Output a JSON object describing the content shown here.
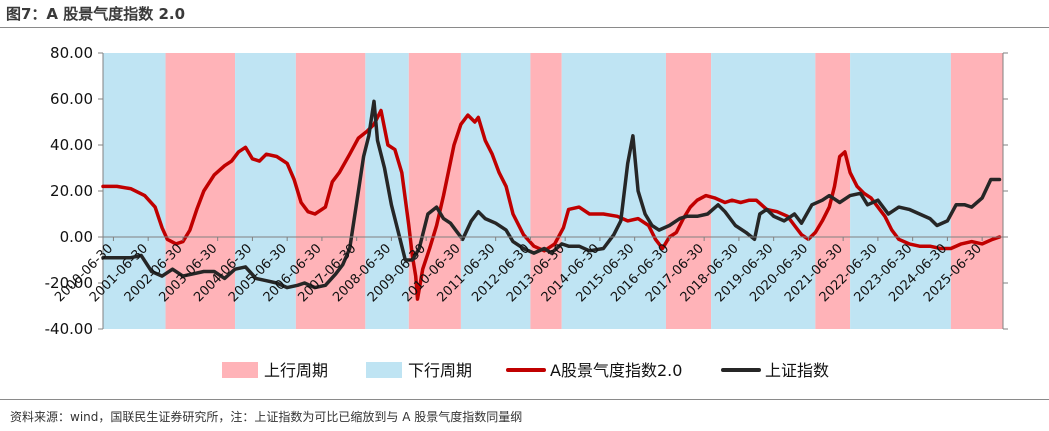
{
  "title": "图7：A 股景气度指数 2.0",
  "source": "资料来源：wind，国联民生证券研究所，注：上证指数为可比已缩放到与 A 股景气度指数同量纲",
  "colors": {
    "up_cycle": "#ffb3b8",
    "down_cycle": "#bfe4f3",
    "index_line": "#c00000",
    "sh_line": "#262626"
  },
  "chart_data": {
    "type": "line",
    "title": "",
    "xlabel": "",
    "ylabel": "",
    "ylim": [
      -40,
      80
    ],
    "yticks": [
      "80.00",
      "60.00",
      "40.00",
      "20.00",
      "0.00",
      "-20.00",
      "-40.00"
    ],
    "xlim": [
      2000.2,
      2026.1
    ],
    "xticks": [
      "2000-06-30",
      "2001-06-30",
      "2002-06-30",
      "2003-06-30",
      "2004-06-30",
      "2005-06-30",
      "2006-06-30",
      "2007-06-30",
      "2008-06-30",
      "2009-06-30",
      "2010-06-30",
      "2011-06-30",
      "2012-06-30",
      "2013-06-30",
      "2014-06-30",
      "2015-06-30",
      "2016-06-30",
      "2017-06-30",
      "2018-06-30",
      "2019-06-30",
      "2020-06-30",
      "2021-06-30",
      "2022-06-30",
      "2023-06-30",
      "2024-06-30",
      "2025-06-30"
    ],
    "grid": false,
    "legend": {
      "position": "bottom",
      "items": [
        {
          "label": "上行周期",
          "kind": "band-up"
        },
        {
          "label": "下行周期",
          "kind": "band-down"
        },
        {
          "label": "A股景气度指数2.0",
          "kind": "line-index"
        },
        {
          "label": "上证指数",
          "kind": "line-sh"
        }
      ]
    },
    "regions": [
      {
        "start": 2000.2,
        "end": 2002.0,
        "phase": "下行周期"
      },
      {
        "start": 2002.0,
        "end": 2004.0,
        "phase": "上行周期"
      },
      {
        "start": 2004.0,
        "end": 2005.75,
        "phase": "下行周期"
      },
      {
        "start": 2005.75,
        "end": 2007.75,
        "phase": "上行周期"
      },
      {
        "start": 2007.75,
        "end": 2009.0,
        "phase": "下行周期"
      },
      {
        "start": 2009.0,
        "end": 2010.5,
        "phase": "上行周期"
      },
      {
        "start": 2010.5,
        "end": 2012.5,
        "phase": "下行周期"
      },
      {
        "start": 2012.5,
        "end": 2013.4,
        "phase": "上行周期"
      },
      {
        "start": 2013.4,
        "end": 2016.4,
        "phase": "下行周期"
      },
      {
        "start": 2016.4,
        "end": 2017.7,
        "phase": "上行周期"
      },
      {
        "start": 2017.7,
        "end": 2020.7,
        "phase": "下行周期"
      },
      {
        "start": 2020.7,
        "end": 2021.7,
        "phase": "上行周期"
      },
      {
        "start": 2021.7,
        "end": 2024.6,
        "phase": "下行周期"
      },
      {
        "start": 2024.6,
        "end": 2026.1,
        "phase": "上行周期"
      }
    ],
    "series": [
      {
        "name": "A股景气度指数2.0",
        "points": [
          [
            2000.2,
            22
          ],
          [
            2000.6,
            22
          ],
          [
            2001.0,
            21
          ],
          [
            2001.4,
            18
          ],
          [
            2001.7,
            13
          ],
          [
            2001.9,
            4
          ],
          [
            2002.05,
            -1
          ],
          [
            2002.3,
            -3
          ],
          [
            2002.5,
            -2
          ],
          [
            2002.7,
            3
          ],
          [
            2002.9,
            12
          ],
          [
            2003.1,
            20
          ],
          [
            2003.4,
            27
          ],
          [
            2003.7,
            31
          ],
          [
            2003.9,
            33
          ],
          [
            2004.1,
            37
          ],
          [
            2004.3,
            39
          ],
          [
            2004.5,
            34
          ],
          [
            2004.7,
            33
          ],
          [
            2004.9,
            36
          ],
          [
            2005.2,
            35
          ],
          [
            2005.5,
            32
          ],
          [
            2005.7,
            25
          ],
          [
            2005.9,
            15
          ],
          [
            2006.1,
            11
          ],
          [
            2006.3,
            10
          ],
          [
            2006.6,
            13
          ],
          [
            2006.8,
            24
          ],
          [
            2007.0,
            28
          ],
          [
            2007.3,
            36
          ],
          [
            2007.55,
            43
          ],
          [
            2007.8,
            46
          ],
          [
            2008.0,
            49
          ],
          [
            2008.2,
            55
          ],
          [
            2008.4,
            40
          ],
          [
            2008.6,
            38
          ],
          [
            2008.8,
            28
          ],
          [
            2009.0,
            5
          ],
          [
            2009.1,
            -8
          ],
          [
            2009.2,
            -17
          ],
          [
            2009.25,
            -27
          ],
          [
            2009.4,
            -14
          ],
          [
            2009.6,
            -5
          ],
          [
            2009.8,
            5
          ],
          [
            2010.0,
            18
          ],
          [
            2010.3,
            40
          ],
          [
            2010.5,
            49
          ],
          [
            2010.7,
            53
          ],
          [
            2010.9,
            50
          ],
          [
            2011.0,
            52
          ],
          [
            2011.2,
            42
          ],
          [
            2011.4,
            36
          ],
          [
            2011.6,
            28
          ],
          [
            2011.8,
            22
          ],
          [
            2012.0,
            10
          ],
          [
            2012.3,
            1
          ],
          [
            2012.6,
            -4
          ],
          [
            2012.9,
            -6
          ],
          [
            2013.2,
            -3
          ],
          [
            2013.45,
            4
          ],
          [
            2013.6,
            12
          ],
          [
            2013.9,
            13
          ],
          [
            2014.2,
            10
          ],
          [
            2014.6,
            10
          ],
          [
            2015.0,
            9
          ],
          [
            2015.3,
            7
          ],
          [
            2015.6,
            8
          ],
          [
            2015.9,
            5
          ],
          [
            2016.1,
            -1
          ],
          [
            2016.3,
            -5
          ],
          [
            2016.5,
            0
          ],
          [
            2016.7,
            2
          ],
          [
            2016.9,
            8
          ],
          [
            2017.1,
            13
          ],
          [
            2017.3,
            16
          ],
          [
            2017.55,
            18
          ],
          [
            2017.8,
            17
          ],
          [
            2018.1,
            15
          ],
          [
            2018.3,
            16
          ],
          [
            2018.55,
            15
          ],
          [
            2018.8,
            16
          ],
          [
            2019.0,
            16
          ],
          [
            2019.3,
            12
          ],
          [
            2019.6,
            11
          ],
          [
            2019.9,
            9
          ],
          [
            2020.1,
            5
          ],
          [
            2020.3,
            1
          ],
          [
            2020.5,
            -1
          ],
          [
            2020.7,
            2
          ],
          [
            2020.9,
            7
          ],
          [
            2021.1,
            13
          ],
          [
            2021.25,
            22
          ],
          [
            2021.4,
            35
          ],
          [
            2021.55,
            37
          ],
          [
            2021.7,
            28
          ],
          [
            2021.9,
            22
          ],
          [
            2022.1,
            19
          ],
          [
            2022.3,
            17
          ],
          [
            2022.5,
            13
          ],
          [
            2022.7,
            9
          ],
          [
            2022.9,
            3
          ],
          [
            2023.1,
            -1
          ],
          [
            2023.4,
            -3
          ],
          [
            2023.7,
            -4
          ],
          [
            2024.0,
            -4
          ],
          [
            2024.3,
            -5
          ],
          [
            2024.6,
            -5
          ],
          [
            2024.9,
            -3
          ],
          [
            2025.2,
            -2
          ],
          [
            2025.5,
            -3
          ],
          [
            2025.8,
            -1
          ],
          [
            2026.0,
            0
          ]
        ]
      },
      {
        "name": "上证指数",
        "points": [
          [
            2000.2,
            -9
          ],
          [
            2000.6,
            -9
          ],
          [
            2001.0,
            -9
          ],
          [
            2001.3,
            -8
          ],
          [
            2001.6,
            -15
          ],
          [
            2001.9,
            -17
          ],
          [
            2002.2,
            -14
          ],
          [
            2002.5,
            -17
          ],
          [
            2002.8,
            -16
          ],
          [
            2003.1,
            -15
          ],
          [
            2003.4,
            -15
          ],
          [
            2003.7,
            -18
          ],
          [
            2004.0,
            -14
          ],
          [
            2004.3,
            -13
          ],
          [
            2004.6,
            -18
          ],
          [
            2004.9,
            -19
          ],
          [
            2005.2,
            -20
          ],
          [
            2005.5,
            -22
          ],
          [
            2005.8,
            -21
          ],
          [
            2006.0,
            -20
          ],
          [
            2006.3,
            -22
          ],
          [
            2006.6,
            -21
          ],
          [
            2006.9,
            -16
          ],
          [
            2007.1,
            -12
          ],
          [
            2007.3,
            -5
          ],
          [
            2007.5,
            15
          ],
          [
            2007.7,
            35
          ],
          [
            2007.85,
            44
          ],
          [
            2008.0,
            59
          ],
          [
            2008.1,
            42
          ],
          [
            2008.3,
            30
          ],
          [
            2008.5,
            14
          ],
          [
            2008.7,
            2
          ],
          [
            2008.9,
            -10
          ],
          [
            2009.1,
            -10
          ],
          [
            2009.3,
            -5
          ],
          [
            2009.55,
            10
          ],
          [
            2009.8,
            13
          ],
          [
            2010.0,
            8
          ],
          [
            2010.2,
            6
          ],
          [
            2010.4,
            2
          ],
          [
            2010.55,
            -1
          ],
          [
            2010.8,
            7
          ],
          [
            2011.0,
            11
          ],
          [
            2011.2,
            8
          ],
          [
            2011.5,
            6
          ],
          [
            2011.8,
            3
          ],
          [
            2012.0,
            -2
          ],
          [
            2012.3,
            -5
          ],
          [
            2012.6,
            -7
          ],
          [
            2012.9,
            -5
          ],
          [
            2013.1,
            -7
          ],
          [
            2013.4,
            -3
          ],
          [
            2013.6,
            -4
          ],
          [
            2013.9,
            -4
          ],
          [
            2014.2,
            -6
          ],
          [
            2014.6,
            -5
          ],
          [
            2014.9,
            1
          ],
          [
            2015.1,
            7
          ],
          [
            2015.3,
            32
          ],
          [
            2015.45,
            44
          ],
          [
            2015.6,
            20
          ],
          [
            2015.8,
            10
          ],
          [
            2016.0,
            5
          ],
          [
            2016.2,
            3
          ],
          [
            2016.5,
            5
          ],
          [
            2016.8,
            8
          ],
          [
            2017.0,
            9
          ],
          [
            2017.3,
            9
          ],
          [
            2017.6,
            10
          ],
          [
            2017.9,
            14
          ],
          [
            2018.1,
            11
          ],
          [
            2018.4,
            5
          ],
          [
            2018.7,
            2
          ],
          [
            2018.95,
            -1
          ],
          [
            2019.1,
            10
          ],
          [
            2019.3,
            12
          ],
          [
            2019.5,
            9
          ],
          [
            2019.8,
            7
          ],
          [
            2020.1,
            10
          ],
          [
            2020.3,
            6
          ],
          [
            2020.6,
            14
          ],
          [
            2020.9,
            16
          ],
          [
            2021.1,
            18
          ],
          [
            2021.4,
            15
          ],
          [
            2021.7,
            18
          ],
          [
            2022.0,
            19
          ],
          [
            2022.2,
            14
          ],
          [
            2022.5,
            16
          ],
          [
            2022.8,
            10
          ],
          [
            2023.1,
            13
          ],
          [
            2023.4,
            12
          ],
          [
            2023.7,
            10
          ],
          [
            2024.0,
            8
          ],
          [
            2024.2,
            5
          ],
          [
            2024.5,
            7
          ],
          [
            2024.75,
            14
          ],
          [
            2025.0,
            14
          ],
          [
            2025.2,
            13
          ],
          [
            2025.5,
            17
          ],
          [
            2025.75,
            25
          ],
          [
            2026.0,
            25
          ]
        ]
      }
    ]
  }
}
